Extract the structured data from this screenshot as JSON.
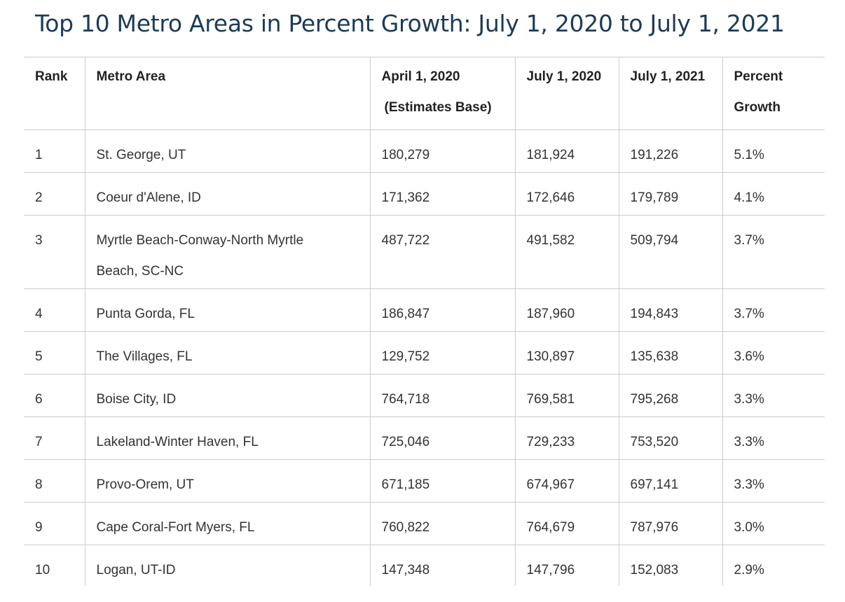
{
  "title": "Top 10 Metro Areas in Percent Growth: July 1, 2020 to July 1, 2021",
  "table": {
    "headers": {
      "rank": "Rank",
      "metro_area": "Metro Area",
      "april_2020_line1": "April 1, 2020",
      "april_2020_line2": "(Estimates Base)",
      "july_2020": "July 1, 2020",
      "july_2021": "July 1, 2021",
      "percent_growth_line1": "Percent",
      "percent_growth_line2": "Growth"
    },
    "rows": [
      {
        "rank": "1",
        "metro": "St. George, UT",
        "april_2020": "180,279",
        "july_2020": "181,924",
        "july_2021": "191,226",
        "growth": "5.1%"
      },
      {
        "rank": "2",
        "metro": "Coeur d'Alene, ID",
        "april_2020": "171,362",
        "july_2020": "172,646",
        "july_2021": "179,789",
        "growth": "4.1%"
      },
      {
        "rank": "3",
        "metro_line1": "Myrtle Beach-Conway-North Myrtle",
        "metro_line2": "Beach, SC-NC",
        "april_2020": "487,722",
        "july_2020": "491,582",
        "july_2021": "509,794",
        "growth": "3.7%"
      },
      {
        "rank": "4",
        "metro": "Punta Gorda, FL",
        "april_2020": "186,847",
        "july_2020": "187,960",
        "july_2021": "194,843",
        "growth": "3.7%"
      },
      {
        "rank": "5",
        "metro": "The Villages, FL",
        "april_2020": "129,752",
        "july_2020": "130,897",
        "july_2021": "135,638",
        "growth": "3.6%"
      },
      {
        "rank": "6",
        "metro": "Boise City, ID",
        "april_2020": "764,718",
        "july_2020": "769,581",
        "july_2021": "795,268",
        "growth": "3.3%"
      },
      {
        "rank": "7",
        "metro": "Lakeland-Winter Haven, FL",
        "april_2020": "725,046",
        "july_2020": "729,233",
        "july_2021": "753,520",
        "growth": "3.3%"
      },
      {
        "rank": "8",
        "metro": "Provo-Orem, UT",
        "april_2020": "671,185",
        "july_2020": "674,967",
        "july_2021": "697,141",
        "growth": "3.3%"
      },
      {
        "rank": "9",
        "metro": "Cape Coral-Fort Myers, FL",
        "april_2020": "760,822",
        "july_2020": "764,679",
        "july_2021": "787,976",
        "growth": "3.0%"
      },
      {
        "rank": "10",
        "metro": "Logan, UT-ID",
        "april_2020": "147,348",
        "july_2020": "147,796",
        "july_2021": "152,083",
        "growth": "2.9%"
      }
    ]
  }
}
